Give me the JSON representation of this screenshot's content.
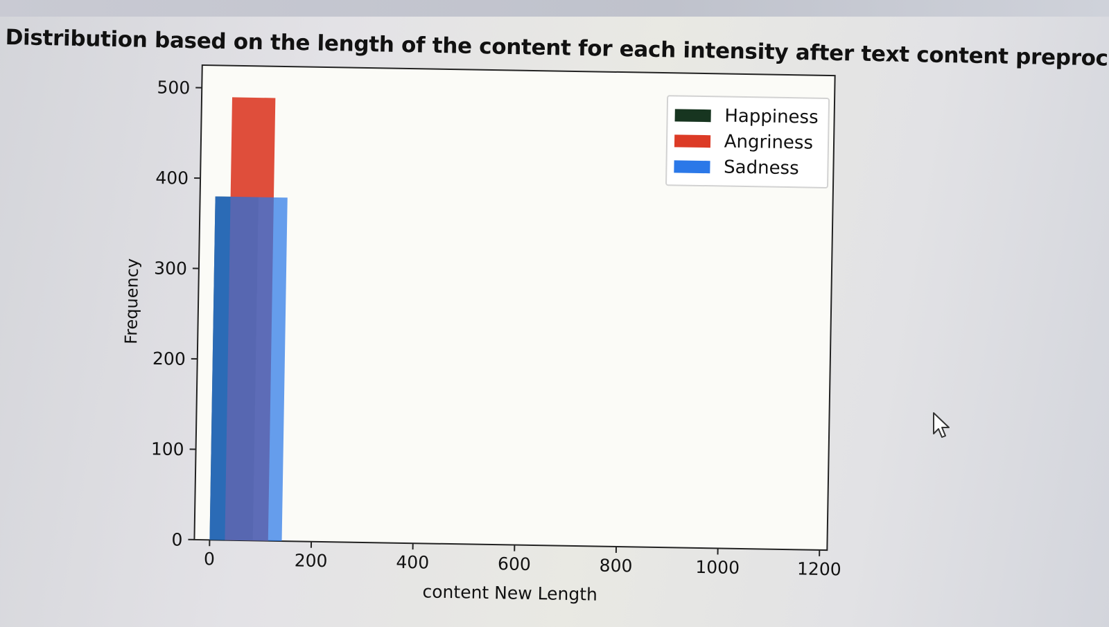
{
  "chart_data": {
    "type": "bar",
    "title": "Distribution based on the length of the content for each intensity after text content preprocessing",
    "xlabel": "content New Length",
    "ylabel": "Frequency",
    "xlim": [
      -30,
      1215
    ],
    "ylim": [
      0,
      525
    ],
    "xticks": [
      0,
      200,
      400,
      600,
      800,
      1000,
      1200
    ],
    "yticks": [
      0,
      100,
      200,
      300,
      400,
      500
    ],
    "legend_position": "top-right",
    "series": [
      {
        "name": "Happiness",
        "color": "#173520",
        "opacity": 0.9,
        "bins": [
          {
            "x0": 0,
            "x1": 85,
            "value": 380
          }
        ]
      },
      {
        "name": "Angriness",
        "color": "#dc3b26",
        "opacity": 0.9,
        "bins": [
          {
            "x0": 30,
            "x1": 115,
            "value": 490
          }
        ]
      },
      {
        "name": "Sadness",
        "color": "#2b78e8",
        "opacity": 0.72,
        "bins": [
          {
            "x0": 0,
            "x1": 142,
            "value": 380
          }
        ]
      }
    ]
  },
  "icons": {
    "cursor": "mouse-pointer-icon"
  }
}
